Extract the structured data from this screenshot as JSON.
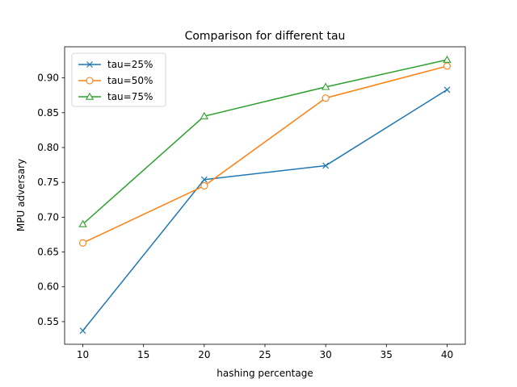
{
  "chart_data": {
    "type": "line",
    "title": "Comparison for different tau",
    "xlabel": "hashing percentage",
    "ylabel": "MPU adversary",
    "x": [
      10,
      20,
      30,
      40
    ],
    "xlim": [
      8.5,
      41.5
    ],
    "ylim": [
      0.5175,
      0.9447
    ],
    "xticks": [
      10,
      15,
      20,
      25,
      30,
      35,
      40
    ],
    "yticks": [
      0.55,
      0.6,
      0.65,
      0.7,
      0.75,
      0.8,
      0.85,
      0.9
    ],
    "grid": false,
    "legend_position": "top-left",
    "series": [
      {
        "name": "tau=25%",
        "color": "#1f77b4",
        "marker": "x",
        "values": [
          0.537,
          0.754,
          0.774,
          0.883
        ]
      },
      {
        "name": "tau=50%",
        "color": "#ff7f0e",
        "marker": "circle",
        "values": [
          0.663,
          0.745,
          0.871,
          0.917
        ]
      },
      {
        "name": "tau=75%",
        "color": "#2ca02c",
        "marker": "triangle",
        "values": [
          0.69,
          0.845,
          0.887,
          0.926
        ]
      }
    ]
  }
}
